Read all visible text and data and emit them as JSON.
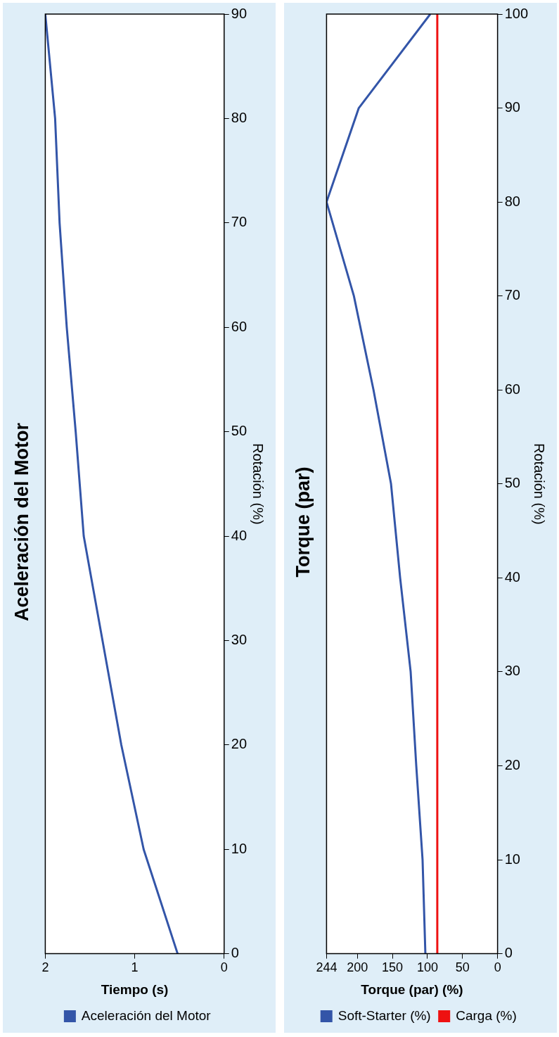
{
  "chart_data": [
    {
      "type": "line",
      "title": "Aceleración del Motor",
      "xlabel": "Tiempo (s)",
      "ylabel": "Rotación (%)",
      "xlim": [
        2,
        0
      ],
      "xticks": [
        0,
        1,
        2
      ],
      "ylim": [
        0,
        90
      ],
      "yticks": [
        0,
        10,
        20,
        30,
        40,
        50,
        60,
        70,
        80,
        90
      ],
      "legend": "bottom",
      "marker": "none",
      "series": [
        {
          "name": "Aceleración del Motor",
          "color": "#3355a8",
          "x": [
            0.52,
            0.9,
            1.15,
            1.36,
            1.57,
            1.66,
            1.76,
            1.84,
            1.89,
            2
          ],
          "values": [
            0,
            10,
            20,
            30,
            40,
            50,
            60,
            70,
            80,
            90
          ]
        }
      ]
    },
    {
      "type": "line",
      "title": "Torque (par)",
      "xlabel": "Torque (par) (%)",
      "ylabel": "Rotación (%)",
      "xlim": [
        244,
        0
      ],
      "xticks": [
        0,
        50,
        100,
        150,
        200,
        244
      ],
      "ylim": [
        0,
        100
      ],
      "yticks": [
        0,
        10,
        20,
        30,
        40,
        50,
        60,
        70,
        80,
        90,
        100
      ],
      "legend": "bottom",
      "marker": "none",
      "series": [
        {
          "name": "Soft-Starter (%)",
          "color": "#3355a8",
          "x": [
            103,
            107,
            116,
            124,
            139,
            152,
            177,
            205,
            244,
            198,
            96
          ],
          "values": [
            0,
            10,
            20,
            30,
            40,
            50,
            60,
            70,
            80,
            90,
            100
          ]
        },
        {
          "name": "Carga (%)",
          "color": "#ee1111",
          "x": [
            86,
            86,
            86,
            86,
            86,
            86,
            86,
            86,
            86,
            86,
            86
          ],
          "values": [
            0,
            10,
            20,
            30,
            40,
            50,
            60,
            70,
            80,
            90,
            100
          ]
        }
      ]
    }
  ]
}
